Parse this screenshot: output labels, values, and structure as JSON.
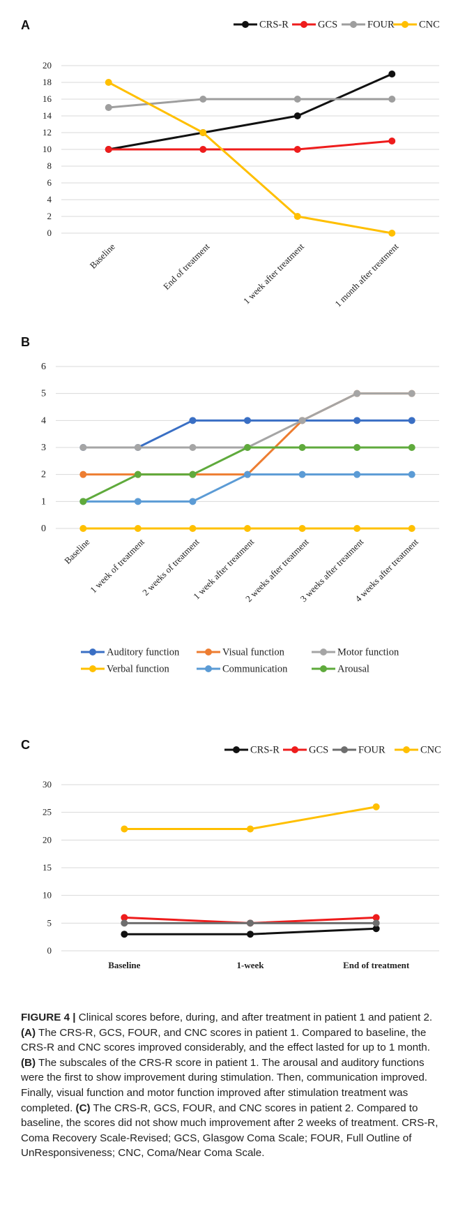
{
  "chart_data": [
    {
      "panel": "A",
      "type": "line",
      "categories": [
        "Baseline",
        "End of treatment",
        "1 week after treatment",
        "1 month after treatment"
      ],
      "ylim": [
        0,
        20
      ],
      "yticks": [
        0,
        2,
        4,
        6,
        8,
        10,
        12,
        14,
        16,
        18,
        20
      ],
      "grid": true,
      "legend_position": "top-right",
      "series": [
        {
          "name": "CRS-R",
          "color": "#111111",
          "values": [
            10,
            12,
            14,
            19
          ]
        },
        {
          "name": "GCS",
          "color": "#ee1c1c",
          "values": [
            10,
            10,
            10,
            11
          ]
        },
        {
          "name": "FOUR",
          "color": "#9e9e9e",
          "values": [
            15,
            16,
            16,
            16
          ]
        },
        {
          "name": "CNC",
          "color": "#ffbf00",
          "values": [
            18,
            12,
            2,
            0
          ]
        }
      ]
    },
    {
      "panel": "B",
      "type": "line",
      "categories": [
        "Baseline",
        "1 week of treatment",
        "2 weeks of treatment",
        "1 week after treatment",
        "2 weeks after treatment",
        "3 weeks after treatment",
        "4 weeks after treatment"
      ],
      "ylim": [
        0,
        6
      ],
      "yticks": [
        0,
        1,
        2,
        3,
        4,
        5,
        6
      ],
      "grid": true,
      "legend_position": "bottom",
      "series": [
        {
          "name": "Auditory function",
          "color": "#3a6fc4",
          "values": [
            3,
            3,
            4,
            4,
            4,
            4,
            4
          ]
        },
        {
          "name": "Visual function",
          "color": "#ed7d31",
          "values": [
            2,
            2,
            2,
            2,
            4,
            5,
            5
          ]
        },
        {
          "name": "Motor function",
          "color": "#a5a5a5",
          "values": [
            3,
            3,
            3,
            3,
            4,
            5,
            5
          ]
        },
        {
          "name": "Verbal function",
          "color": "#ffc000",
          "values": [
            0,
            0,
            0,
            0,
            0,
            0,
            0
          ]
        },
        {
          "name": "Communication",
          "color": "#5b9bd5",
          "values": [
            1,
            1,
            1,
            2,
            2,
            2,
            2
          ]
        },
        {
          "name": "Arousal",
          "color": "#5faa3c",
          "values": [
            1,
            2,
            2,
            3,
            3,
            3,
            3
          ]
        }
      ]
    },
    {
      "panel": "C",
      "type": "line",
      "categories": [
        "Baseline",
        "1-week",
        "End of treatment"
      ],
      "ylim": [
        0,
        30
      ],
      "yticks": [
        0,
        5,
        10,
        15,
        20,
        25,
        30
      ],
      "grid": true,
      "legend_position": "top-right",
      "series": [
        {
          "name": "CRS-R",
          "color": "#111111",
          "values": [
            3,
            3,
            4
          ]
        },
        {
          "name": "GCS",
          "color": "#ee1c1c",
          "values": [
            6,
            5,
            6
          ]
        },
        {
          "name": "FOUR",
          "color": "#6e6e6e",
          "values": [
            5,
            5,
            5
          ]
        },
        {
          "name": "CNC",
          "color": "#ffbf00",
          "values": [
            22,
            22,
            26
          ]
        }
      ]
    }
  ],
  "caption": {
    "label": "FIGURE 4 |",
    "lead": " Clinical scores before, during, and after treatment in patient 1 and patient 2. ",
    "a_mark": "(A)",
    "a_text": " The CRS-R, GCS, FOUR, and CNC scores in patient 1. Compared to baseline, the CRS-R and CNC scores improved considerably, and the effect lasted for up to 1 month. ",
    "b_mark": "(B)",
    "b_text": " The subscales of the CRS-R score in patient 1. The arousal and auditory functions were the first to show improvement during stimulation. Then, communication improved. Finally, visual function and motor function improved after stimulation treatment was completed. ",
    "c_mark": "(C)",
    "c_text": " The CRS-R, GCS, FOUR, and CNC scores in patient 2. Compared to baseline, the scores did not show much improvement after 2 weeks of treatment. CRS-R, Coma Recovery Scale-Revised; GCS, Glasgow Coma Scale; FOUR, Full Outline of UnResponsiveness; CNC, Coma/Near Coma Scale."
  }
}
